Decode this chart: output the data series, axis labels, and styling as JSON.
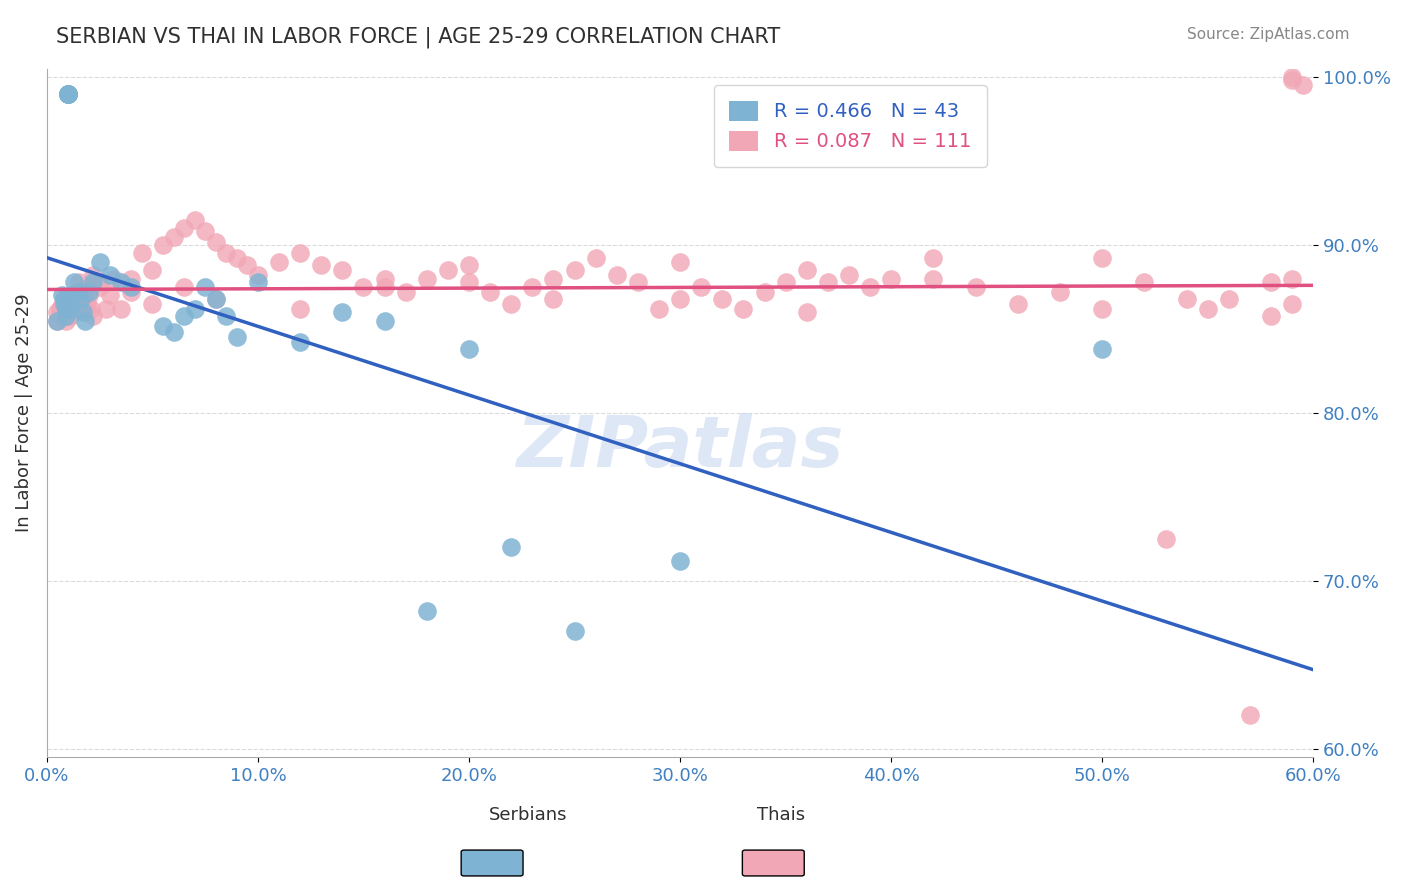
{
  "title": "SERBIAN VS THAI IN LABOR FORCE | AGE 25-29 CORRELATION CHART",
  "source_text": "Source: ZipAtlas.com",
  "xlabel": "",
  "ylabel": "In Labor Force | Age 25-29",
  "xlim": [
    0.0,
    0.6
  ],
  "ylim": [
    0.595,
    1.005
  ],
  "xtick_labels": [
    "0.0%",
    "10.0%",
    "20.0%",
    "30.0%",
    "40.0%",
    "50.0%",
    "60.0%"
  ],
  "xtick_vals": [
    0.0,
    0.1,
    0.2,
    0.3,
    0.4,
    0.5,
    0.6
  ],
  "ytick_labels": [
    "60.0%",
    "70.0%",
    "80.0%",
    "90.0%",
    "100.0%"
  ],
  "ytick_vals": [
    0.6,
    0.7,
    0.8,
    0.9,
    1.0
  ],
  "serbian_R": 0.466,
  "serbian_N": 43,
  "thai_R": 0.087,
  "thai_N": 111,
  "serbian_color": "#7fb3d3",
  "thai_color": "#f1a7b5",
  "serbian_line_color": "#3060c0",
  "thai_line_color": "#e05080",
  "legend_labels": [
    "Serbians",
    "Thais"
  ],
  "watermark": "ZIPatlas",
  "watermark_color": "#c8d8f0",
  "background_color": "#ffffff",
  "grid_color": "#cccccc",
  "title_color": "#303030",
  "axis_label_color": "#303030",
  "tick_color": "#4080c0",
  "serbian_x": [
    0.005,
    0.007,
    0.008,
    0.008,
    0.009,
    0.009,
    0.01,
    0.01,
    0.01,
    0.01,
    0.01,
    0.011,
    0.011,
    0.012,
    0.013,
    0.015,
    0.016,
    0.017,
    0.018,
    0.02,
    0.022,
    0.025,
    0.03,
    0.035,
    0.04,
    0.055,
    0.06,
    0.065,
    0.07,
    0.075,
    0.08,
    0.085,
    0.09,
    0.1,
    0.12,
    0.14,
    0.16,
    0.18,
    0.2,
    0.22,
    0.25,
    0.3,
    0.5
  ],
  "serbian_y": [
    0.855,
    0.87,
    0.868,
    0.865,
    0.862,
    0.858,
    0.99,
    0.99,
    0.99,
    0.99,
    0.99,
    0.862,
    0.865,
    0.87,
    0.878,
    0.872,
    0.868,
    0.86,
    0.855,
    0.872,
    0.878,
    0.89,
    0.882,
    0.878,
    0.875,
    0.852,
    0.848,
    0.858,
    0.862,
    0.875,
    0.868,
    0.858,
    0.845,
    0.878,
    0.842,
    0.86,
    0.855,
    0.682,
    0.838,
    0.72,
    0.67,
    0.712,
    0.838
  ],
  "thai_x": [
    0.005,
    0.006,
    0.007,
    0.008,
    0.009,
    0.01,
    0.011,
    0.012,
    0.013,
    0.015,
    0.016,
    0.017,
    0.018,
    0.02,
    0.022,
    0.025,
    0.03,
    0.035,
    0.04,
    0.045,
    0.05,
    0.055,
    0.06,
    0.065,
    0.07,
    0.075,
    0.08,
    0.085,
    0.09,
    0.095,
    0.1,
    0.11,
    0.12,
    0.13,
    0.14,
    0.15,
    0.16,
    0.17,
    0.18,
    0.19,
    0.2,
    0.21,
    0.22,
    0.23,
    0.24,
    0.25,
    0.26,
    0.27,
    0.28,
    0.29,
    0.3,
    0.31,
    0.32,
    0.33,
    0.34,
    0.35,
    0.36,
    0.37,
    0.38,
    0.39,
    0.4,
    0.42,
    0.44,
    0.46,
    0.48,
    0.5,
    0.52,
    0.53,
    0.54,
    0.55,
    0.56,
    0.57,
    0.58,
    0.59,
    0.005,
    0.006,
    0.007,
    0.008,
    0.009,
    0.01,
    0.011,
    0.012,
    0.013,
    0.015,
    0.016,
    0.017,
    0.018,
    0.019,
    0.02,
    0.021,
    0.022,
    0.025,
    0.028,
    0.032,
    0.04,
    0.05,
    0.065,
    0.08,
    0.12,
    0.16,
    0.2,
    0.24,
    0.3,
    0.36,
    0.42,
    0.5,
    0.58,
    0.59,
    0.595,
    0.59,
    0.59
  ],
  "thai_y": [
    0.86,
    0.862,
    0.864,
    0.866,
    0.858,
    0.862,
    0.858,
    0.864,
    0.87,
    0.878,
    0.872,
    0.868,
    0.862,
    0.875,
    0.882,
    0.878,
    0.87,
    0.862,
    0.88,
    0.895,
    0.885,
    0.9,
    0.905,
    0.91,
    0.915,
    0.908,
    0.902,
    0.895,
    0.892,
    0.888,
    0.882,
    0.89,
    0.895,
    0.888,
    0.885,
    0.875,
    0.88,
    0.872,
    0.88,
    0.885,
    0.878,
    0.872,
    0.865,
    0.875,
    0.868,
    0.885,
    0.892,
    0.882,
    0.878,
    0.862,
    0.89,
    0.875,
    0.868,
    0.862,
    0.872,
    0.878,
    0.885,
    0.878,
    0.882,
    0.875,
    0.88,
    0.892,
    0.875,
    0.865,
    0.872,
    0.862,
    0.878,
    0.725,
    0.868,
    0.862,
    0.868,
    0.62,
    0.858,
    0.88,
    0.855,
    0.862,
    0.858,
    0.865,
    0.855,
    0.862,
    0.858,
    0.865,
    0.862,
    0.87,
    0.865,
    0.862,
    0.868,
    0.865,
    0.87,
    0.862,
    0.858,
    0.875,
    0.862,
    0.88,
    0.872,
    0.865,
    0.875,
    0.868,
    0.862,
    0.875,
    0.888,
    0.88,
    0.868,
    0.86,
    0.88,
    0.892,
    0.878,
    0.865,
    0.995,
    0.998,
    1.0
  ]
}
